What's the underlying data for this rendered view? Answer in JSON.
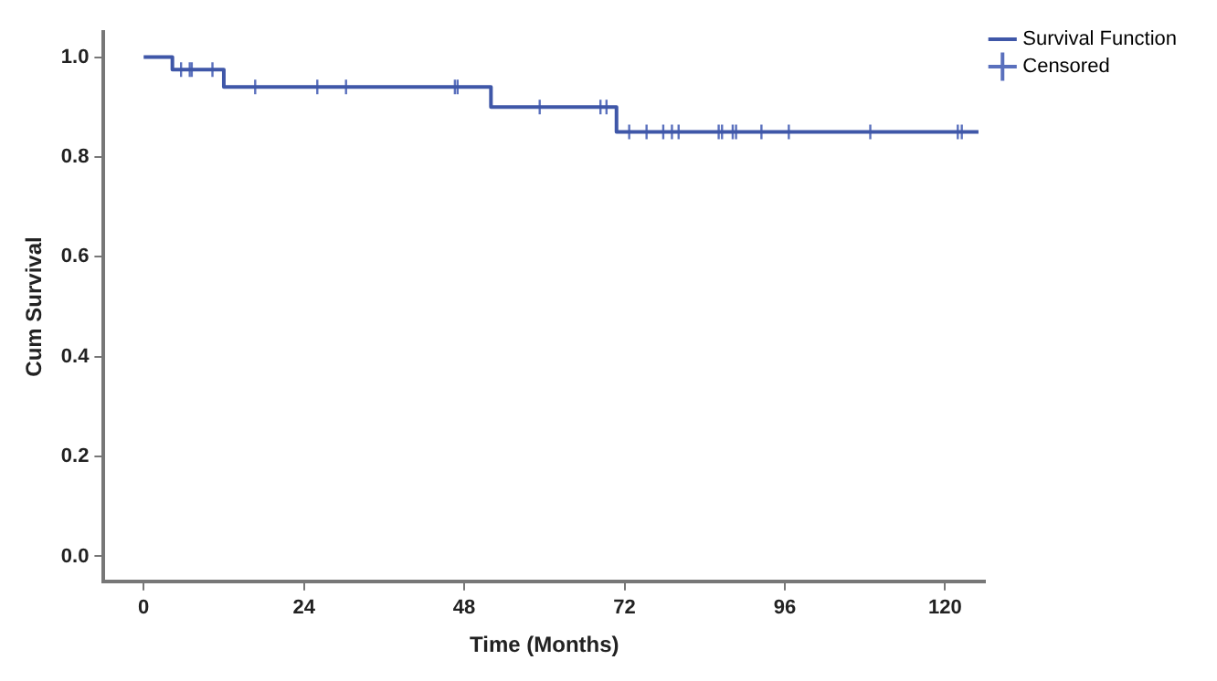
{
  "chart_data": {
    "type": "step",
    "xlabel": "Time (Months)",
    "ylabel": "Cum Survival",
    "xlim": [
      -6,
      126
    ],
    "ylim": [
      -0.05,
      1.05
    ],
    "xticks": [
      0,
      24,
      48,
      72,
      96,
      120
    ],
    "yticks": [
      {
        "value": 0,
        "label": "0.0"
      },
      {
        "value": 0.2,
        "label": "0.2"
      },
      {
        "value": 0.4,
        "label": "0.4"
      },
      {
        "value": 0.6,
        "label": "0.6"
      },
      {
        "value": 0.8,
        "label": "0.8"
      },
      {
        "value": 1,
        "label": "1.0"
      }
    ],
    "grid": false,
    "legend": "top right",
    "series": [
      {
        "name": "Survival Function",
        "type": "step",
        "color": "#3f57a8",
        "marker": "none",
        "x": [
          0,
          4.3,
          12,
          52,
          70.8,
          125
        ],
        "values": [
          1,
          0.975,
          0.94,
          0.9,
          0.85,
          0.85
        ]
      },
      {
        "name": "Censored",
        "type": "scatter",
        "color": "#5a70bd",
        "marker": "cross",
        "x": [
          5.6,
          6.9,
          7.2,
          10.3,
          16.7,
          26,
          30.3,
          46.6,
          47,
          59.3,
          68.4,
          69.3,
          72.7,
          75.3,
          77.8,
          79.1,
          80.1,
          86.1,
          86.6,
          88.2,
          88.7,
          92.5,
          96.6,
          108.8,
          121.9,
          122.5
        ],
        "values": [
          0.975,
          0.975,
          0.975,
          0.975,
          0.94,
          0.94,
          0.94,
          0.94,
          0.94,
          0.9,
          0.9,
          0.9,
          0.85,
          0.85,
          0.85,
          0.85,
          0.85,
          0.85,
          0.85,
          0.85,
          0.85,
          0.85,
          0.85,
          0.85,
          0.85,
          0.85
        ]
      }
    ]
  }
}
